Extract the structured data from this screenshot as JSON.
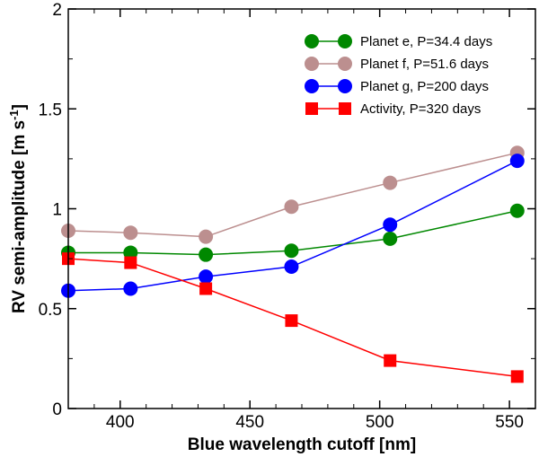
{
  "chart_data": {
    "type": "line",
    "xlabel": "Blue wavelength cutoff [nm]",
    "ylabel": "RV semi-amplitude [m s",
    "ylabel_sup": "-1",
    "ylabel_end": "]",
    "xlim": [
      380,
      560
    ],
    "ylim": [
      0,
      2
    ],
    "xticks": [
      {
        "value": 400,
        "label": "400"
      },
      {
        "value": 450,
        "label": "450"
      },
      {
        "value": 500,
        "label": "500"
      },
      {
        "value": 550,
        "label": "550"
      }
    ],
    "yticks": [
      {
        "value": 0,
        "label": "0"
      },
      {
        "value": 0.5,
        "label": "0.5"
      },
      {
        "value": 1,
        "label": "1"
      },
      {
        "value": 1.5,
        "label": "1.5"
      },
      {
        "value": 2,
        "label": "2"
      }
    ],
    "x": [
      380,
      404,
      433,
      466,
      504,
      553
    ],
    "legend_position": "top-right",
    "grid": false,
    "series": [
      {
        "name": "Planet e, P=34.4 days",
        "values": [
          0.78,
          0.78,
          0.77,
          0.79,
          0.85,
          0.99
        ],
        "color": "#008800",
        "marker": "circle"
      },
      {
        "name": "Planet f, P=51.6 days",
        "values": [
          0.89,
          0.88,
          0.86,
          1.01,
          1.13,
          1.28
        ],
        "color": "#bc8f8f",
        "marker": "circle"
      },
      {
        "name": "Planet g, P=200 days",
        "values": [
          0.59,
          0.6,
          0.66,
          0.71,
          0.92,
          1.24
        ],
        "color": "#0000ff",
        "marker": "circle"
      },
      {
        "name": "Activity, P=320 days",
        "values": [
          0.75,
          0.73,
          0.6,
          0.44,
          0.24,
          0.16
        ],
        "color": "#ff0000",
        "marker": "square"
      }
    ]
  }
}
